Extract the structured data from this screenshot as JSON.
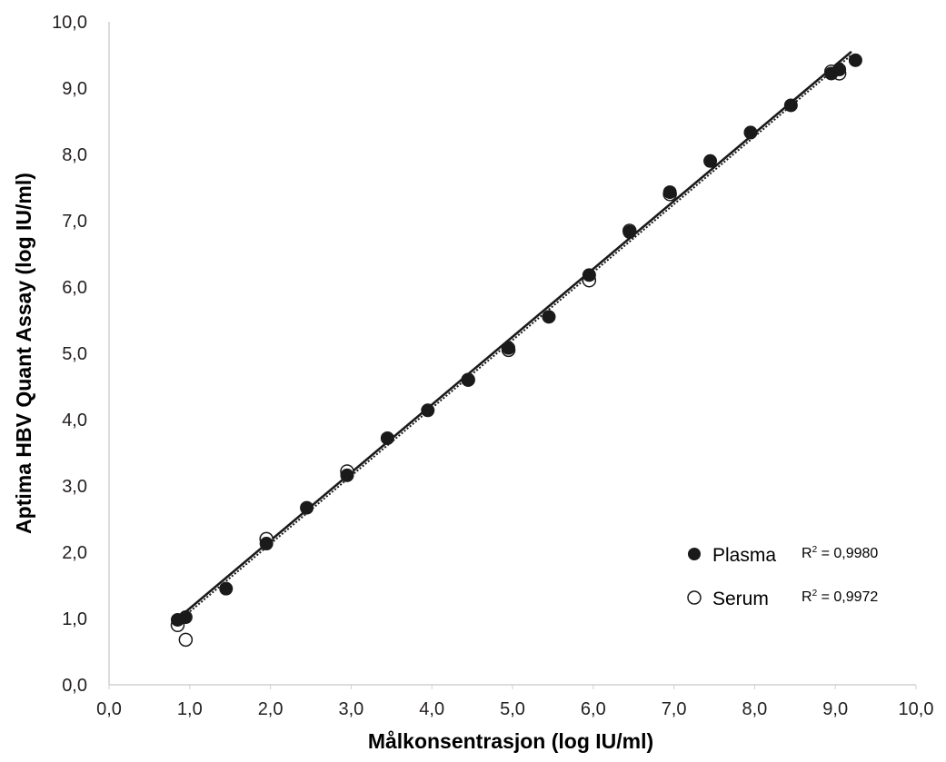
{
  "chart_data": {
    "type": "scatter",
    "xlabel": "Målkonsentrasjon (log IU/ml)",
    "ylabel": "Aptima HBV Quant Assay (log IU/ml)",
    "xlim": [
      0,
      10
    ],
    "ylim": [
      0,
      10
    ],
    "x_ticks": [
      "0,0",
      "1,0",
      "2,0",
      "3,0",
      "4,0",
      "5,0",
      "6,0",
      "7,0",
      "8,0",
      "9,0",
      "10,0"
    ],
    "y_ticks": [
      "0,0",
      "1,0",
      "2,0",
      "3,0",
      "4,0",
      "5,0",
      "6,0",
      "7,0",
      "8,0",
      "9,0",
      "10,0"
    ],
    "legend_position": "bottom-right",
    "grid": false,
    "series": [
      {
        "name": "Plasma",
        "marker": "filled-circle",
        "r2_label": "R",
        "r2_value": " = 0,9980",
        "trendline": [
          [
            0.9,
            1.05
          ],
          [
            9.2,
            9.55
          ]
        ],
        "points": [
          [
            0.85,
            0.98
          ],
          [
            0.95,
            1.02
          ],
          [
            1.45,
            1.45
          ],
          [
            1.95,
            2.13
          ],
          [
            2.45,
            2.67
          ],
          [
            2.95,
            3.16
          ],
          [
            3.45,
            3.72
          ],
          [
            3.95,
            4.14
          ],
          [
            4.45,
            4.6
          ],
          [
            4.95,
            5.08
          ],
          [
            5.45,
            5.55
          ],
          [
            5.95,
            6.18
          ],
          [
            6.45,
            6.83
          ],
          [
            6.95,
            7.43
          ],
          [
            7.45,
            7.9
          ],
          [
            7.95,
            8.33
          ],
          [
            8.45,
            8.74
          ],
          [
            8.95,
            9.22
          ],
          [
            9.05,
            9.28
          ],
          [
            9.25,
            9.42
          ]
        ]
      },
      {
        "name": "Serum",
        "marker": "open-circle",
        "r2_label": "R",
        "r2_value": " = 0,9972",
        "trendline": [
          [
            0.9,
            1.0
          ],
          [
            9.2,
            9.5
          ]
        ],
        "points": [
          [
            0.85,
            0.9
          ],
          [
            0.95,
            0.68
          ],
          [
            1.95,
            2.2
          ],
          [
            2.95,
            3.22
          ],
          [
            4.45,
            4.6
          ],
          [
            4.95,
            5.05
          ],
          [
            5.95,
            6.1
          ],
          [
            6.45,
            6.85
          ],
          [
            6.95,
            7.4
          ],
          [
            8.95,
            9.25
          ],
          [
            9.05,
            9.22
          ]
        ]
      }
    ]
  }
}
